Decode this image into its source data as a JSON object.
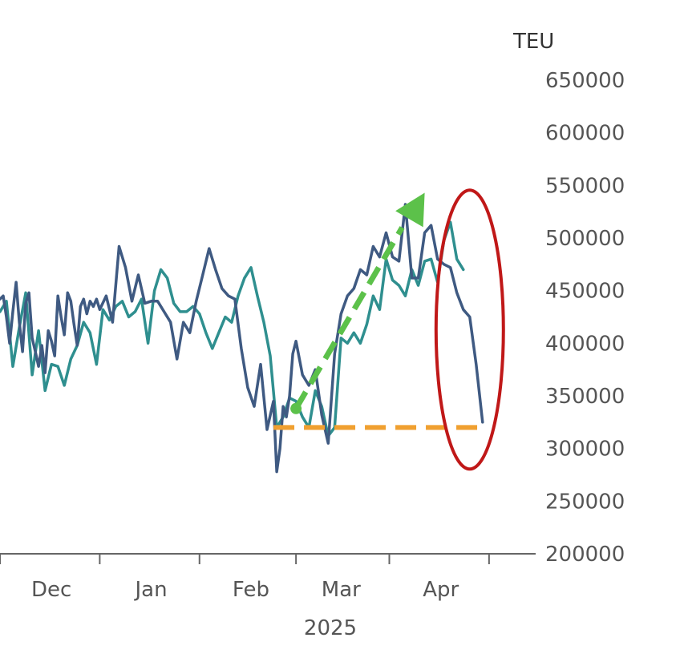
{
  "chart_data": {
    "type": "line",
    "title": "",
    "ylabel": "TEU",
    "xlabel": "2025",
    "ylim": [
      200000,
      650000
    ],
    "y_ticks": [
      650000,
      600000,
      550000,
      500000,
      450000,
      400000,
      350000,
      300000,
      250000,
      200000
    ],
    "x_range": [
      "2024-11-15",
      "2025-04-27"
    ],
    "x_ticks": [
      {
        "date": "2024-12-01",
        "label": "Dec"
      },
      {
        "date": "2025-01-01",
        "label": "Jan"
      },
      {
        "date": "2025-02-01",
        "label": "Feb"
      },
      {
        "date": "2025-03-01",
        "label": "Mar"
      },
      {
        "date": "2025-04-01",
        "label": "Apr"
      }
    ],
    "x_dividers": [
      "2024-11-15",
      "2024-12-16",
      "2025-01-16",
      "2025-02-15",
      "2025-03-16",
      "2025-04-16"
    ],
    "grid": false,
    "colors": {
      "series_dark": "#3f5a82",
      "series_teal": "#2f8f8f",
      "trend_arrow": "#5cc14a",
      "baseline": "#f0a030",
      "highlight": "#c01818",
      "axis": "#666666"
    },
    "series": [
      {
        "color": "#3f5a82",
        "x": [
          "2024-11-15",
          "2024-11-16",
          "2024-11-17",
          "2024-11-18",
          "2024-11-19",
          "2024-11-20",
          "2024-11-21",
          "2024-11-22",
          "2024-11-23",
          "2024-11-24",
          "2024-11-25",
          "2024-11-26",
          "2024-11-27",
          "2024-11-28",
          "2024-11-29",
          "2024-11-30",
          "2024-12-01",
          "2024-12-02",
          "2024-12-03",
          "2024-12-04",
          "2024-12-05",
          "2024-12-06",
          "2024-12-07",
          "2024-12-08",
          "2024-12-09",
          "2024-12-10",
          "2024-12-11",
          "2024-12-12",
          "2024-12-13",
          "2024-12-14",
          "2024-12-15",
          "2024-12-16",
          "2024-12-18",
          "2024-12-20",
          "2024-12-22",
          "2024-12-24",
          "2024-12-26",
          "2024-12-28",
          "2024-12-30",
          "2025-01-01",
          "2025-01-03",
          "2025-01-05",
          "2025-01-07",
          "2025-01-09",
          "2025-01-11",
          "2025-01-13",
          "2025-01-15",
          "2025-01-17",
          "2025-01-19",
          "2025-01-21",
          "2025-01-23",
          "2025-01-25",
          "2025-01-27",
          "2025-01-29",
          "2025-01-31",
          "2025-02-02",
          "2025-02-04",
          "2025-02-06",
          "2025-02-08",
          "2025-02-09",
          "2025-02-10",
          "2025-02-11",
          "2025-02-12",
          "2025-02-13",
          "2025-02-14",
          "2025-02-15",
          "2025-02-17",
          "2025-02-19",
          "2025-02-21",
          "2025-02-23",
          "2025-02-25",
          "2025-02-27",
          "2025-03-01",
          "2025-03-03",
          "2025-03-05",
          "2025-03-07",
          "2025-03-09",
          "2025-03-11",
          "2025-03-13",
          "2025-03-15",
          "2025-03-17",
          "2025-03-19",
          "2025-03-21",
          "2025-03-23",
          "2025-03-25",
          "2025-03-27",
          "2025-03-29",
          "2025-03-31",
          "2025-04-02",
          "2025-04-04",
          "2025-04-06",
          "2025-04-08",
          "2025-04-10",
          "2025-04-12",
          "2025-04-14"
        ],
        "y": [
          442000,
          445000,
          425000,
          400000,
          430000,
          458000,
          420000,
          392000,
          438000,
          448000,
          405000,
          392000,
          378000,
          398000,
          372000,
          412000,
          402000,
          388000,
          445000,
          425000,
          408000,
          448000,
          440000,
          418000,
          398000,
          435000,
          442000,
          428000,
          440000,
          435000,
          442000,
          432000,
          445000,
          420000,
          492000,
          472000,
          440000,
          465000,
          438000,
          440000,
          440000,
          430000,
          420000,
          385000,
          420000,
          410000,
          440000,
          465000,
          490000,
          470000,
          452000,
          445000,
          442000,
          395000,
          358000,
          340000,
          380000,
          318000,
          345000,
          278000,
          300000,
          340000,
          330000,
          350000,
          390000,
          402000,
          370000,
          360000,
          375000,
          332000,
          305000,
          390000,
          428000,
          445000,
          452000,
          470000,
          465000,
          492000,
          482000,
          505000,
          482000,
          478000,
          532000,
          462000,
          462000,
          505000,
          512000,
          480000,
          475000,
          472000,
          448000,
          432000,
          425000,
          380000,
          325000
        ]
      },
      {
        "color": "#2f8f8f",
        "x": [
          "2024-11-15",
          "2024-11-17",
          "2024-11-19",
          "2024-11-21",
          "2024-11-23",
          "2024-11-25",
          "2024-11-27",
          "2024-11-29",
          "2024-12-01",
          "2024-12-03",
          "2024-12-05",
          "2024-12-07",
          "2024-12-09",
          "2024-12-11",
          "2024-12-13",
          "2024-12-15",
          "2024-12-17",
          "2024-12-19",
          "2024-12-21",
          "2024-12-23",
          "2024-12-25",
          "2024-12-27",
          "2024-12-29",
          "2024-12-31",
          "2025-01-02",
          "2025-01-04",
          "2025-01-06",
          "2025-01-08",
          "2025-01-10",
          "2025-01-12",
          "2025-01-14",
          "2025-01-16",
          "2025-01-18",
          "2025-01-20",
          "2025-01-22",
          "2025-01-24",
          "2025-01-26",
          "2025-01-28",
          "2025-01-30",
          "2025-02-01",
          "2025-02-03",
          "2025-02-05",
          "2025-02-07",
          "2025-02-09",
          "2025-02-11",
          "2025-02-13",
          "2025-02-15",
          "2025-02-17",
          "2025-02-19",
          "2025-02-21",
          "2025-02-23",
          "2025-02-25",
          "2025-02-27",
          "2025-03-01",
          "2025-03-03",
          "2025-03-05",
          "2025-03-07",
          "2025-03-09",
          "2025-03-11",
          "2025-03-13",
          "2025-03-15",
          "2025-03-17",
          "2025-03-19",
          "2025-03-21",
          "2025-03-23",
          "2025-03-25",
          "2025-03-27",
          "2025-03-29",
          "2025-03-31",
          "2025-04-02",
          "2025-04-04",
          "2025-04-06",
          "2025-04-08"
        ],
        "y": [
          430000,
          440000,
          378000,
          415000,
          448000,
          370000,
          412000,
          355000,
          380000,
          378000,
          360000,
          385000,
          398000,
          420000,
          410000,
          380000,
          432000,
          422000,
          435000,
          440000,
          425000,
          430000,
          442000,
          400000,
          450000,
          470000,
          462000,
          438000,
          430000,
          430000,
          435000,
          428000,
          410000,
          395000,
          410000,
          425000,
          420000,
          445000,
          462000,
          472000,
          445000,
          420000,
          388000,
          320000,
          330000,
          348000,
          345000,
          330000,
          320000,
          355000,
          340000,
          312000,
          320000,
          405000,
          400000,
          410000,
          400000,
          418000,
          445000,
          432000,
          480000,
          460000,
          455000,
          445000,
          470000,
          455000,
          478000,
          480000,
          458000,
          498000,
          515000,
          480000,
          470000
        ]
      }
    ]
  }
}
